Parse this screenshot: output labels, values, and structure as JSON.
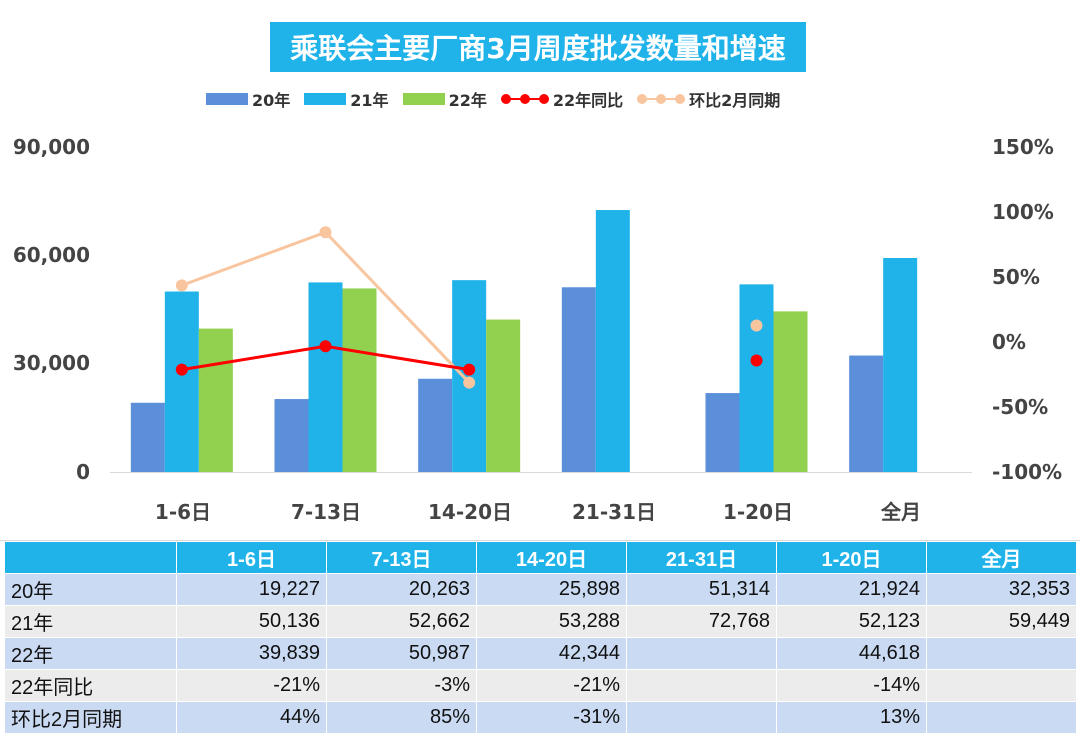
{
  "chart_data": {
    "type": "bar",
    "title": "乘联会主要厂商3月周度批发数量和增速",
    "categories": [
      "1-6日",
      "7-13日",
      "14-20日",
      "21-31日",
      "1-20日",
      "全月"
    ],
    "series": [
      {
        "name": "20年",
        "type": "bar",
        "color": "#5b8fd9",
        "values": [
          19227,
          20263,
          25898,
          51314,
          21924,
          32353
        ]
      },
      {
        "name": "21年",
        "type": "bar",
        "color": "#1fb3ea",
        "values": [
          50136,
          52662,
          53288,
          72768,
          52123,
          59449
        ]
      },
      {
        "name": "22年",
        "type": "bar",
        "color": "#92d050",
        "values": [
          39839,
          50987,
          42344,
          null,
          44618,
          null
        ]
      },
      {
        "name": "22年同比",
        "type": "line",
        "axis": "right",
        "color": "#ff0000",
        "values": [
          -21,
          -3,
          -21,
          null,
          -14,
          null
        ]
      },
      {
        "name": "环比2月同期",
        "type": "line",
        "axis": "right",
        "color": "#f8c59e",
        "values": [
          44,
          85,
          -31,
          null,
          13,
          null
        ]
      }
    ],
    "left_axis": {
      "range": [
        0,
        90000
      ],
      "ticks": [
        "0",
        "30,000",
        "60,000",
        "90,000"
      ]
    },
    "right_axis": {
      "unit": "%",
      "range": [
        -100,
        150
      ],
      "ticks": [
        "150%",
        "100%",
        "50%",
        "0%",
        "-50%",
        "-100%"
      ]
    },
    "legend_position": "top",
    "grid": false
  },
  "table": {
    "headers": [
      "1-6日",
      "7-13日",
      "14-20日",
      "21-31日",
      "1-20日",
      "全月"
    ],
    "rows": [
      {
        "label": "20年",
        "cells": [
          "19,227",
          "20,263",
          "25,898",
          "51,314",
          "21,924",
          "32,353"
        ]
      },
      {
        "label": "21年",
        "cells": [
          "50,136",
          "52,662",
          "53,288",
          "72,768",
          "52,123",
          "59,449"
        ]
      },
      {
        "label": "22年",
        "cells": [
          "39,839",
          "50,987",
          "42,344",
          "",
          "44,618",
          ""
        ]
      },
      {
        "label": "22年同比",
        "cells": [
          "-21%",
          "-3%",
          "-21%",
          "",
          "-14%",
          ""
        ]
      },
      {
        "label": "环比2月同期",
        "cells": [
          "44%",
          "85%",
          "-31%",
          "",
          "13%",
          ""
        ]
      }
    ]
  }
}
